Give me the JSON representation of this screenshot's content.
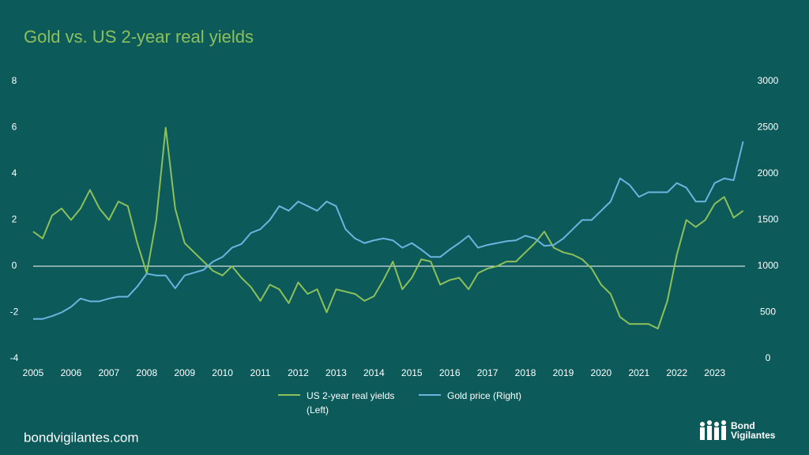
{
  "chart_data": {
    "type": "line",
    "title": "Gold vs. US 2-year real yields",
    "x": [
      2005,
      2005.25,
      2005.5,
      2005.75,
      2006,
      2006.25,
      2006.5,
      2006.75,
      2007,
      2007.25,
      2007.5,
      2007.75,
      2008,
      2008.25,
      2008.5,
      2008.75,
      2009,
      2009.25,
      2009.5,
      2009.75,
      2010,
      2010.25,
      2010.5,
      2010.75,
      2011,
      2011.25,
      2011.5,
      2011.75,
      2012,
      2012.25,
      2012.5,
      2012.75,
      2013,
      2013.25,
      2013.5,
      2013.75,
      2014,
      2014.25,
      2014.5,
      2014.75,
      2015,
      2015.25,
      2015.5,
      2015.75,
      2016,
      2016.25,
      2016.5,
      2016.75,
      2017,
      2017.25,
      2017.5,
      2017.75,
      2018,
      2018.25,
      2018.5,
      2018.75,
      2019,
      2019.25,
      2019.5,
      2019.75,
      2020,
      2020.25,
      2020.5,
      2020.75,
      2021,
      2021.25,
      2021.5,
      2021.75,
      2022,
      2022.25,
      2022.5,
      2022.75,
      2023,
      2023.25,
      2023.5,
      2023.75
    ],
    "series": [
      {
        "name": "US 2-year real yields (Left)",
        "color": "#8cc05a",
        "axis": "y",
        "values": [
          1.5,
          1.2,
          2.2,
          2.5,
          2.0,
          2.5,
          3.3,
          2.5,
          2.0,
          2.8,
          2.6,
          1.0,
          -0.3,
          2.0,
          6.0,
          2.5,
          1.0,
          0.6,
          0.2,
          -0.2,
          -0.4,
          0.0,
          -0.5,
          -0.9,
          -1.5,
          -0.8,
          -1.0,
          -1.6,
          -0.7,
          -1.2,
          -1.0,
          -2.0,
          -1.0,
          -1.1,
          -1.2,
          -1.5,
          -1.3,
          -0.6,
          0.2,
          -1.0,
          -0.5,
          0.3,
          0.2,
          -0.8,
          -0.6,
          -0.5,
          -1.0,
          -0.3,
          -0.1,
          0.0,
          0.2,
          0.2,
          0.6,
          1.0,
          1.5,
          0.8,
          0.6,
          0.5,
          0.3,
          -0.1,
          -0.8,
          -1.2,
          -2.2,
          -2.5,
          -2.5,
          -2.5,
          -2.7,
          -1.5,
          0.5,
          2.0,
          1.7,
          2.0,
          2.7,
          3.0,
          2.1,
          2.4
        ]
      },
      {
        "name": "Gold price (Right)",
        "color": "#6ab4e0",
        "axis": "y2",
        "values": [
          430,
          430,
          460,
          500,
          560,
          650,
          620,
          620,
          650,
          670,
          670,
          780,
          920,
          900,
          900,
          760,
          900,
          930,
          960,
          1050,
          1100,
          1200,
          1240,
          1360,
          1400,
          1500,
          1650,
          1600,
          1700,
          1650,
          1600,
          1700,
          1650,
          1400,
          1300,
          1250,
          1280,
          1300,
          1280,
          1200,
          1250,
          1180,
          1100,
          1100,
          1180,
          1250,
          1330,
          1200,
          1230,
          1250,
          1270,
          1280,
          1330,
          1300,
          1220,
          1230,
          1300,
          1400,
          1500,
          1500,
          1600,
          1700,
          1950,
          1880,
          1750,
          1800,
          1800,
          1800,
          1900,
          1850,
          1700,
          1700,
          1900,
          1950,
          1930,
          2350
        ]
      }
    ],
    "xlim": [
      2005,
      2023.8
    ],
    "xticks": [
      2005,
      2006,
      2007,
      2008,
      2009,
      2010,
      2011,
      2012,
      2013,
      2014,
      2015,
      2016,
      2017,
      2018,
      2019,
      2020,
      2021,
      2022,
      2023
    ],
    "ylim": [
      -4,
      8
    ],
    "yticks": [
      -4,
      -2,
      0,
      2,
      4,
      6,
      8
    ],
    "y2lim": [
      0,
      3000
    ],
    "y2ticks": [
      0,
      500,
      1000,
      1500,
      2000,
      2500,
      3000
    ],
    "grid": false,
    "legend": "bottom"
  },
  "footer": {
    "site": "bondvigilantes.com",
    "logo": "Bond Vigilantes"
  }
}
